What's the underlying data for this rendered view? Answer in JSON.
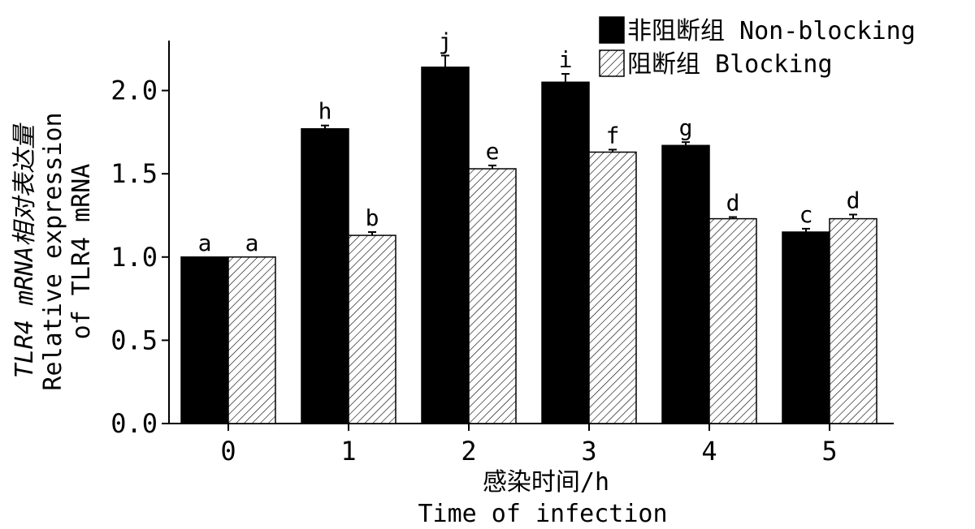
{
  "chart_data": {
    "type": "bar",
    "title": "",
    "xlabel_cn": "感染时间/h",
    "xlabel_en": "Time of infection",
    "ylabel_line1": "TLR4 mRNA相对表达量",
    "ylabel_line2": "Relative expression",
    "ylabel_line3": "of TLR4 mRNA",
    "categories": [
      "0",
      "1",
      "2",
      "3",
      "4",
      "5"
    ],
    "ylim": [
      0,
      2.3
    ],
    "yticks": [
      "0.0",
      "0.5",
      "1.0",
      "1.5",
      "2.0"
    ],
    "ytick_values": [
      0,
      0.5,
      1.0,
      1.5,
      2.0
    ],
    "legend_position": "top-right",
    "series": [
      {
        "name": "非阻断组 Non-blocking",
        "fill": "solid",
        "color": "#000000",
        "values": [
          1.0,
          1.77,
          2.14,
          2.05,
          1.67,
          1.15
        ],
        "errors": [
          0.0,
          0.02,
          0.07,
          0.05,
          0.02,
          0.02
        ],
        "labels": [
          "a",
          "h",
          "j",
          "i",
          "g",
          "c"
        ]
      },
      {
        "name": "阻断组 Blocking",
        "fill": "hatched",
        "color": "#000000",
        "values": [
          1.0,
          1.13,
          1.53,
          1.63,
          1.23,
          1.23
        ],
        "errors": [
          0.0,
          0.02,
          0.02,
          0.015,
          0.01,
          0.025
        ],
        "labels": [
          "a",
          "b",
          "e",
          "f",
          "d",
          "d"
        ]
      }
    ]
  }
}
